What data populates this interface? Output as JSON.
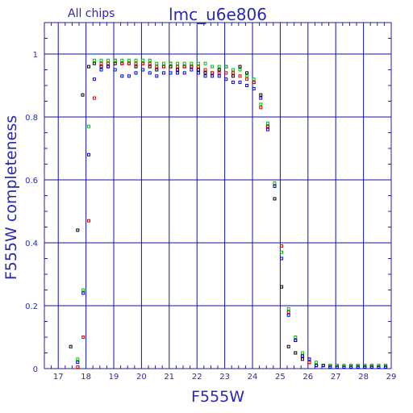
{
  "corner_label": "All chips",
  "colors": {
    "axis": "#2020a0",
    "grid": "#1010a8",
    "text": "#2828b0",
    "series_black": "#000000",
    "series_red": "#e00000",
    "series_green": "#00c000",
    "series_blue": "#0000e0"
  },
  "chart_data": {
    "type": "scatter",
    "title": "lmc_u6e806",
    "xlabel": "F555W",
    "ylabel": "F555W completeness",
    "xlim": [
      16.5,
      29
    ],
    "ylim": [
      0,
      1.1
    ],
    "grid": true,
    "x_ticks": [
      17,
      18,
      19,
      20,
      21,
      22,
      23,
      24,
      25,
      26,
      27,
      28,
      29
    ],
    "y_ticks": [
      0,
      0.2,
      0.4,
      0.6,
      0.8,
      1
    ],
    "y_tick_labels": [
      "0",
      "0.2",
      "0.4",
      "0.6",
      "0.8",
      "1"
    ],
    "series": [
      {
        "color_key": "series_black",
        "points": [
          [
            17.45,
            0.07
          ],
          [
            17.7,
            0.44
          ],
          [
            17.88,
            0.87
          ],
          [
            18.1,
            0.96
          ],
          [
            18.3,
            0.97
          ],
          [
            18.55,
            0.96
          ],
          [
            18.8,
            0.96
          ],
          [
            19.05,
            0.97
          ],
          [
            19.3,
            0.97
          ],
          [
            19.55,
            0.97
          ],
          [
            19.8,
            0.96
          ],
          [
            20.05,
            0.97
          ],
          [
            20.3,
            0.96
          ],
          [
            20.55,
            0.95
          ],
          [
            20.8,
            0.96
          ],
          [
            21.05,
            0.96
          ],
          [
            21.3,
            0.95
          ],
          [
            21.55,
            0.96
          ],
          [
            21.8,
            0.96
          ],
          [
            22.05,
            0.95
          ],
          [
            22.3,
            0.94
          ],
          [
            22.55,
            0.94
          ],
          [
            22.8,
            0.95
          ],
          [
            23.05,
            0.96
          ],
          [
            23.3,
            0.93
          ],
          [
            23.55,
            0.96
          ],
          [
            23.8,
            0.94
          ],
          [
            24.05,
            0.91
          ],
          [
            24.3,
            0.87
          ],
          [
            24.55,
            0.77
          ],
          [
            24.8,
            0.54
          ],
          [
            25.05,
            0.26
          ],
          [
            25.3,
            0.07
          ],
          [
            25.55,
            0.05
          ],
          [
            25.8,
            0.03
          ],
          [
            26.05,
            0.02
          ],
          [
            26.3,
            0.01
          ],
          [
            26.55,
            0.01
          ],
          [
            26.8,
            0.01
          ],
          [
            27.05,
            0.01
          ],
          [
            27.3,
            0.01
          ],
          [
            27.55,
            0.01
          ],
          [
            27.8,
            0.01
          ],
          [
            28.05,
            0.01
          ],
          [
            28.3,
            0.01
          ],
          [
            28.55,
            0.01
          ],
          [
            28.8,
            0.01
          ]
        ]
      },
      {
        "color_key": "series_red",
        "points": [
          [
            17.7,
            0.005
          ],
          [
            17.9,
            0.1
          ],
          [
            18.1,
            0.47
          ],
          [
            18.3,
            0.86
          ],
          [
            18.55,
            0.97
          ],
          [
            18.8,
            0.97
          ],
          [
            19.05,
            0.98
          ],
          [
            19.3,
            0.97
          ],
          [
            19.55,
            0.97
          ],
          [
            19.8,
            0.97
          ],
          [
            20.05,
            0.97
          ],
          [
            20.3,
            0.97
          ],
          [
            20.55,
            0.96
          ],
          [
            20.8,
            0.96
          ],
          [
            21.05,
            0.97
          ],
          [
            21.3,
            0.96
          ],
          [
            21.55,
            0.96
          ],
          [
            21.8,
            0.96
          ],
          [
            22.05,
            0.96
          ],
          [
            22.3,
            0.95
          ],
          [
            22.55,
            0.94
          ],
          [
            22.8,
            0.94
          ],
          [
            23.05,
            0.94
          ],
          [
            23.3,
            0.94
          ],
          [
            23.55,
            0.93
          ],
          [
            23.8,
            0.92
          ],
          [
            24.05,
            0.91
          ],
          [
            24.3,
            0.83
          ],
          [
            24.55,
            0.77
          ],
          [
            24.8,
            0.58
          ],
          [
            25.05,
            0.39
          ],
          [
            25.3,
            0.18
          ],
          [
            25.55,
            0.09
          ],
          [
            25.8,
            0.04
          ],
          [
            26.05,
            0.02
          ],
          [
            26.3,
            0.01
          ],
          [
            26.55,
            0.01
          ],
          [
            26.8,
            0.01
          ],
          [
            27.05,
            0.01
          ],
          [
            27.3,
            0.005
          ],
          [
            27.55,
            0.005
          ],
          [
            27.8,
            0.005
          ],
          [
            28.05,
            0.005
          ],
          [
            28.3,
            0.005
          ],
          [
            28.55,
            0.005
          ],
          [
            28.8,
            0.005
          ]
        ]
      },
      {
        "color_key": "series_green",
        "points": [
          [
            17.7,
            0.03
          ],
          [
            17.9,
            0.25
          ],
          [
            18.1,
            0.77
          ],
          [
            18.3,
            0.98
          ],
          [
            18.55,
            0.98
          ],
          [
            18.8,
            0.98
          ],
          [
            19.05,
            0.98
          ],
          [
            19.3,
            0.98
          ],
          [
            19.55,
            0.98
          ],
          [
            19.8,
            0.98
          ],
          [
            20.05,
            0.98
          ],
          [
            20.3,
            0.98
          ],
          [
            20.55,
            0.97
          ],
          [
            20.8,
            0.97
          ],
          [
            21.05,
            0.97
          ],
          [
            21.3,
            0.97
          ],
          [
            21.55,
            0.97
          ],
          [
            21.8,
            0.97
          ],
          [
            22.05,
            0.97
          ],
          [
            22.3,
            0.97
          ],
          [
            22.55,
            0.96
          ],
          [
            22.8,
            0.96
          ],
          [
            23.05,
            0.96
          ],
          [
            23.3,
            0.95
          ],
          [
            23.55,
            0.95
          ],
          [
            23.8,
            0.93
          ],
          [
            24.05,
            0.92
          ],
          [
            24.3,
            0.84
          ],
          [
            24.55,
            0.78
          ],
          [
            24.8,
            0.59
          ],
          [
            25.05,
            0.37
          ],
          [
            25.3,
            0.19
          ],
          [
            25.55,
            0.1
          ],
          [
            25.8,
            0.05
          ],
          [
            26.05,
            0.03
          ],
          [
            26.3,
            0.02
          ],
          [
            26.55,
            0.01
          ],
          [
            26.8,
            0.01
          ],
          [
            27.05,
            0.01
          ],
          [
            27.3,
            0.01
          ],
          [
            27.55,
            0.01
          ],
          [
            27.8,
            0.01
          ],
          [
            28.05,
            0.01
          ],
          [
            28.3,
            0.01
          ],
          [
            28.55,
            0.01
          ],
          [
            28.8,
            0.01
          ]
        ]
      },
      {
        "color_key": "series_blue",
        "points": [
          [
            17.7,
            0.02
          ],
          [
            17.9,
            0.24
          ],
          [
            18.1,
            0.68
          ],
          [
            18.3,
            0.92
          ],
          [
            18.55,
            0.95
          ],
          [
            18.8,
            0.96
          ],
          [
            19.05,
            0.95
          ],
          [
            19.3,
            0.93
          ],
          [
            19.55,
            0.93
          ],
          [
            19.8,
            0.94
          ],
          [
            20.05,
            0.95
          ],
          [
            20.3,
            0.94
          ],
          [
            20.55,
            0.93
          ],
          [
            20.8,
            0.94
          ],
          [
            21.05,
            0.94
          ],
          [
            21.3,
            0.94
          ],
          [
            21.55,
            0.94
          ],
          [
            21.8,
            0.95
          ],
          [
            22.05,
            0.94
          ],
          [
            22.3,
            0.93
          ],
          [
            22.55,
            0.93
          ],
          [
            22.8,
            0.93
          ],
          [
            23.05,
            0.92
          ],
          [
            23.3,
            0.91
          ],
          [
            23.55,
            0.91
          ],
          [
            23.8,
            0.9
          ],
          [
            24.05,
            0.89
          ],
          [
            24.3,
            0.86
          ],
          [
            24.55,
            0.76
          ],
          [
            24.8,
            0.58
          ],
          [
            25.05,
            0.35
          ],
          [
            25.3,
            0.17
          ],
          [
            25.55,
            0.09
          ],
          [
            25.8,
            0.04
          ],
          [
            26.05,
            0.03
          ],
          [
            26.3,
            0.01
          ],
          [
            26.55,
            0.01
          ],
          [
            26.8,
            0.005
          ],
          [
            27.05,
            0.005
          ],
          [
            27.3,
            0.005
          ],
          [
            27.55,
            0.005
          ],
          [
            27.8,
            0.005
          ],
          [
            28.05,
            0.005
          ],
          [
            28.3,
            0.005
          ],
          [
            28.55,
            0.005
          ],
          [
            28.8,
            0.005
          ]
        ]
      }
    ]
  }
}
